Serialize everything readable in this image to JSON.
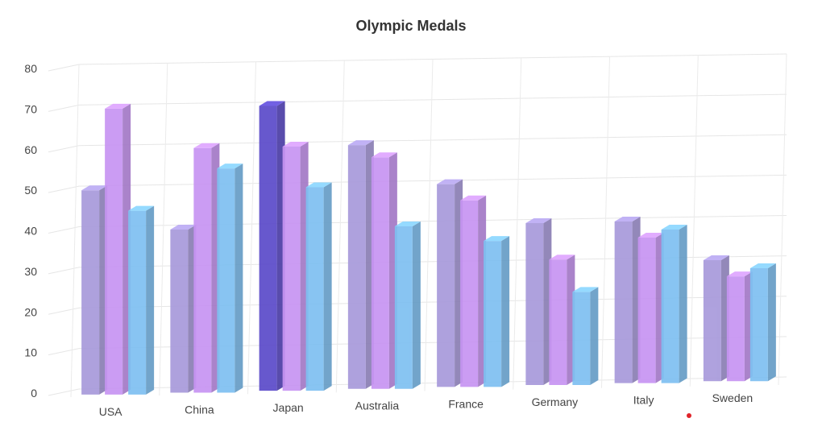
{
  "chart_data": {
    "type": "bar",
    "title": "Olympic Medals",
    "categories": [
      "USA",
      "China",
      "Japan",
      "Australia",
      "France",
      "Germany",
      "Italy",
      "Sweden"
    ],
    "series": [
      {
        "values": [
          50,
          40,
          70,
          60,
          50,
          40,
          40,
          30
        ],
        "color": "#a89adb"
      },
      {
        "values": [
          70,
          60,
          60,
          57,
          46,
          31,
          36,
          26
        ],
        "color": "#c794f2"
      },
      {
        "values": [
          45,
          55,
          50,
          40,
          36,
          23,
          38,
          28
        ],
        "color": "#7ec0f1"
      }
    ],
    "highlight": {
      "series": 0,
      "index": 2,
      "color": "#5b4ac9"
    },
    "ylim": [
      0,
      80
    ],
    "yticks": [
      0,
      10,
      20,
      30,
      40,
      50,
      60,
      70,
      80
    ],
    "grid": true,
    "legend": "none",
    "xlabel": "",
    "ylabel": ""
  }
}
